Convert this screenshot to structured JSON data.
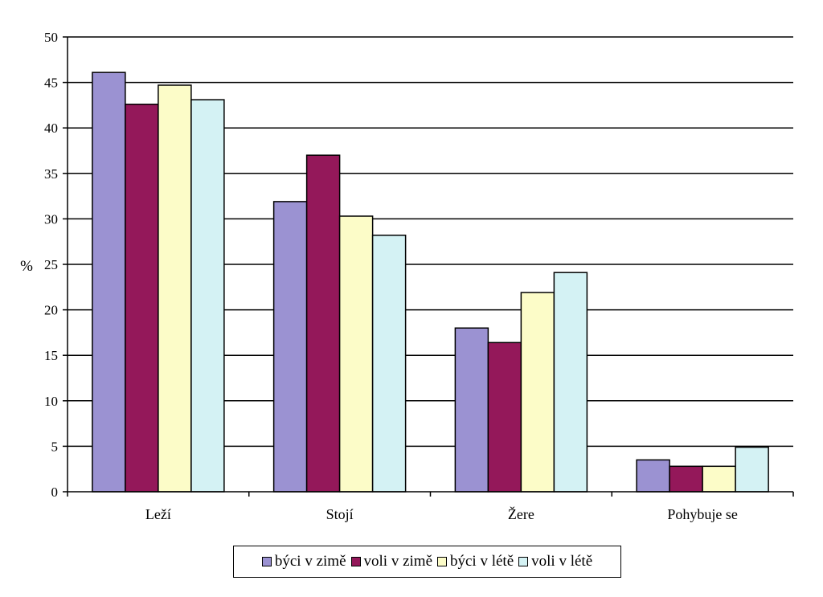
{
  "chart_data": {
    "type": "bar",
    "categories": [
      "Leží",
      "Stojí",
      "Žere",
      "Pohybuje se"
    ],
    "series": [
      {
        "name": "býci v zimě",
        "color": "#9b92d2",
        "values": [
          46.1,
          31.9,
          18.0,
          3.5
        ]
      },
      {
        "name": "voli v zimě",
        "color": "#94185a",
        "values": [
          42.6,
          37.0,
          16.4,
          2.8
        ]
      },
      {
        "name": "býci v létě",
        "color": "#fcfcc8",
        "values": [
          44.7,
          30.3,
          21.9,
          2.8
        ]
      },
      {
        "name": "voli v létě",
        "color": "#d4f2f4",
        "values": [
          43.1,
          28.2,
          24.1,
          4.9
        ]
      }
    ],
    "ylabel": "%",
    "xlabel": "",
    "ylim": [
      0,
      50
    ],
    "yticks": [
      "0",
      "5",
      "10",
      "15",
      "20",
      "25",
      "30",
      "35",
      "40",
      "45",
      "50"
    ],
    "grid": "horizontal",
    "legend_position": "bottom"
  }
}
